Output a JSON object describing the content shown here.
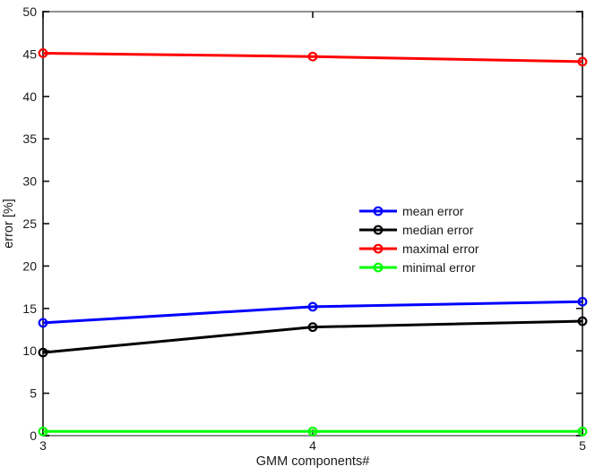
{
  "chart_data": {
    "type": "line",
    "title": "",
    "xlabel": "GMM components#",
    "ylabel": "error [%]",
    "x": [
      3,
      4,
      5
    ],
    "xticks": [
      "3",
      "4",
      "5"
    ],
    "yticks": [
      "0",
      "5",
      "10",
      "15",
      "20",
      "25",
      "30",
      "35",
      "40",
      "45",
      "50"
    ],
    "ytick_values": [
      0,
      5,
      10,
      15,
      20,
      25,
      30,
      35,
      40,
      45,
      50
    ],
    "xlim": [
      3,
      5
    ],
    "ylim": [
      0,
      50
    ],
    "grid": false,
    "marker": "o",
    "legend": {
      "position": "middle-right",
      "border": false,
      "entries": [
        "mean error",
        "median error",
        "maximal error",
        "minimal error"
      ]
    },
    "series": [
      {
        "name": "mean error",
        "color": "#0000ff",
        "values": [
          13.3,
          15.2,
          15.8
        ]
      },
      {
        "name": "median error",
        "color": "#000000",
        "values": [
          9.8,
          12.8,
          13.5
        ]
      },
      {
        "name": "maximal error",
        "color": "#ff0000",
        "values": [
          45.1,
          44.7,
          44.1
        ]
      },
      {
        "name": "minimal error",
        "color": "#00ff00",
        "values": [
          0.5,
          0.5,
          0.5
        ]
      }
    ]
  },
  "style": {
    "background": "#ffffff",
    "axis_horizontal_color": "#8f8f8f",
    "axis_vertical_color": "#2e2e2e",
    "tick_color": "#111111",
    "text_color": "#1a1a1a"
  }
}
